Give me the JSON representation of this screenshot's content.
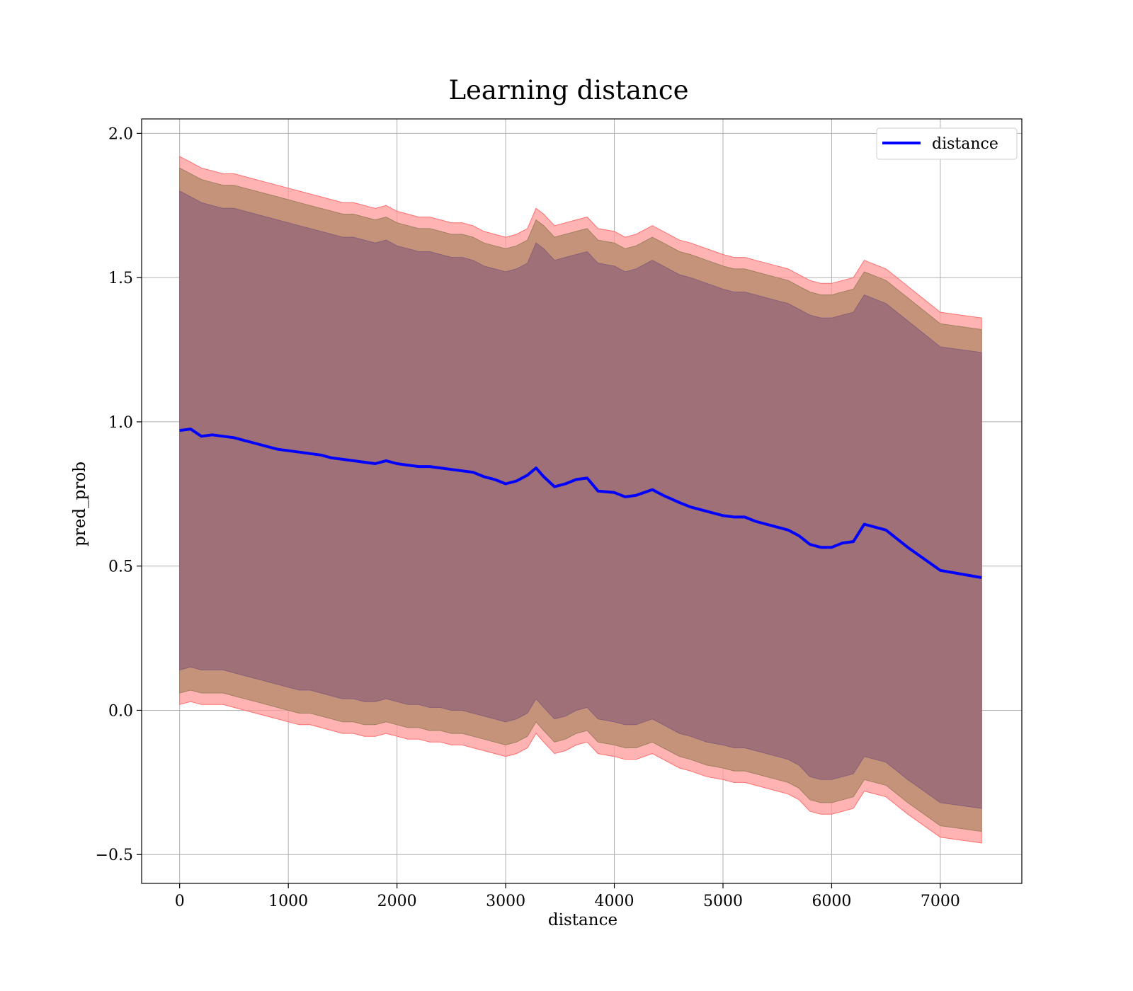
{
  "chart_data": {
    "type": "line",
    "title": "Learning distance",
    "xlabel": "distance",
    "ylabel": "pred_prob",
    "xlim": [
      -350,
      7750
    ],
    "ylim": [
      -0.6,
      2.05
    ],
    "x_ticks": [
      0,
      1000,
      2000,
      3000,
      4000,
      5000,
      6000,
      7000
    ],
    "y_ticks": [
      -0.5,
      0.0,
      0.5,
      1.0,
      1.5,
      2.0
    ],
    "x_tick_labels": [
      "0",
      "1000",
      "2000",
      "3000",
      "4000",
      "5000",
      "6000",
      "7000"
    ],
    "y_tick_labels": [
      "−0.5",
      "0.0",
      "0.5",
      "1.0",
      "1.5",
      "2.0"
    ],
    "grid": true,
    "legend": {
      "position": "top-right",
      "entries": [
        "distance"
      ]
    },
    "colors": {
      "line": "#0000ff",
      "band_outer": "#ff9999",
      "band_middle": "#c4937a",
      "band_inner": "#a07078",
      "grid": "#b0b0b0"
    },
    "series": [
      {
        "name": "distance",
        "x": [
          0,
          100,
          200,
          300,
          400,
          500,
          600,
          700,
          800,
          900,
          1000,
          1100,
          1200,
          1300,
          1400,
          1500,
          1600,
          1700,
          1800,
          1900,
          2000,
          2100,
          2200,
          2300,
          2400,
          2500,
          2600,
          2700,
          2800,
          2900,
          3000,
          3100,
          3200,
          3280,
          3350,
          3450,
          3550,
          3650,
          3750,
          3850,
          4000,
          4100,
          4200,
          4350,
          4450,
          4600,
          4700,
          4850,
          5000,
          5100,
          5200,
          5300,
          5500,
          5600,
          5700,
          5750,
          5800,
          5900,
          6000,
          6100,
          6200,
          6300,
          6500,
          6700,
          7000,
          7380
        ],
        "y": [
          0.97,
          0.975,
          0.95,
          0.955,
          0.95,
          0.945,
          0.935,
          0.925,
          0.915,
          0.905,
          0.9,
          0.895,
          0.89,
          0.885,
          0.875,
          0.87,
          0.865,
          0.86,
          0.855,
          0.865,
          0.855,
          0.85,
          0.845,
          0.845,
          0.84,
          0.835,
          0.83,
          0.825,
          0.81,
          0.8,
          0.785,
          0.795,
          0.815,
          0.84,
          0.81,
          0.775,
          0.785,
          0.8,
          0.805,
          0.76,
          0.755,
          0.74,
          0.745,
          0.765,
          0.745,
          0.72,
          0.705,
          0.69,
          0.675,
          0.67,
          0.67,
          0.655,
          0.635,
          0.625,
          0.605,
          0.59,
          0.575,
          0.565,
          0.565,
          0.58,
          0.585,
          0.645,
          0.625,
          0.565,
          0.485,
          0.46
        ],
        "band_outer_upper": [
          1.92,
          1.9,
          1.88,
          1.87,
          1.86,
          1.86,
          1.85,
          1.84,
          1.83,
          1.82,
          1.81,
          1.8,
          1.79,
          1.78,
          1.77,
          1.76,
          1.76,
          1.75,
          1.74,
          1.75,
          1.73,
          1.72,
          1.71,
          1.71,
          1.7,
          1.69,
          1.69,
          1.68,
          1.66,
          1.65,
          1.64,
          1.65,
          1.67,
          1.74,
          1.72,
          1.68,
          1.69,
          1.7,
          1.71,
          1.67,
          1.66,
          1.64,
          1.65,
          1.68,
          1.66,
          1.63,
          1.62,
          1.6,
          1.58,
          1.57,
          1.57,
          1.56,
          1.54,
          1.53,
          1.51,
          1.5,
          1.49,
          1.48,
          1.48,
          1.49,
          1.5,
          1.56,
          1.53,
          1.47,
          1.38,
          1.36
        ],
        "band_outer_lower": [
          0.02,
          0.03,
          0.02,
          0.02,
          0.02,
          0.01,
          0.0,
          -0.01,
          -0.02,
          -0.03,
          -0.04,
          -0.05,
          -0.05,
          -0.06,
          -0.07,
          -0.08,
          -0.08,
          -0.09,
          -0.09,
          -0.08,
          -0.09,
          -0.1,
          -0.1,
          -0.11,
          -0.11,
          -0.12,
          -0.12,
          -0.13,
          -0.14,
          -0.15,
          -0.16,
          -0.15,
          -0.13,
          -0.08,
          -0.11,
          -0.15,
          -0.14,
          -0.12,
          -0.11,
          -0.15,
          -0.16,
          -0.17,
          -0.17,
          -0.15,
          -0.17,
          -0.2,
          -0.21,
          -0.23,
          -0.24,
          -0.25,
          -0.25,
          -0.26,
          -0.28,
          -0.29,
          -0.31,
          -0.33,
          -0.35,
          -0.36,
          -0.36,
          -0.35,
          -0.34,
          -0.28,
          -0.3,
          -0.36,
          -0.44,
          -0.46
        ],
        "band_middle_upper": [
          1.88,
          1.86,
          1.84,
          1.83,
          1.82,
          1.82,
          1.81,
          1.8,
          1.79,
          1.78,
          1.77,
          1.76,
          1.75,
          1.74,
          1.73,
          1.72,
          1.72,
          1.71,
          1.7,
          1.71,
          1.69,
          1.68,
          1.67,
          1.67,
          1.66,
          1.65,
          1.65,
          1.64,
          1.62,
          1.61,
          1.6,
          1.61,
          1.63,
          1.7,
          1.68,
          1.64,
          1.65,
          1.66,
          1.67,
          1.63,
          1.62,
          1.6,
          1.61,
          1.64,
          1.62,
          1.59,
          1.58,
          1.56,
          1.54,
          1.53,
          1.53,
          1.52,
          1.5,
          1.49,
          1.47,
          1.46,
          1.45,
          1.44,
          1.44,
          1.45,
          1.46,
          1.52,
          1.49,
          1.43,
          1.34,
          1.32
        ],
        "band_middle_lower": [
          0.06,
          0.07,
          0.06,
          0.06,
          0.06,
          0.05,
          0.04,
          0.03,
          0.02,
          0.01,
          0.0,
          -0.01,
          -0.01,
          -0.02,
          -0.03,
          -0.04,
          -0.04,
          -0.05,
          -0.05,
          -0.04,
          -0.05,
          -0.06,
          -0.06,
          -0.07,
          -0.07,
          -0.08,
          -0.08,
          -0.09,
          -0.1,
          -0.11,
          -0.12,
          -0.11,
          -0.09,
          -0.04,
          -0.07,
          -0.11,
          -0.1,
          -0.08,
          -0.07,
          -0.11,
          -0.12,
          -0.13,
          -0.13,
          -0.11,
          -0.13,
          -0.16,
          -0.17,
          -0.19,
          -0.2,
          -0.21,
          -0.21,
          -0.22,
          -0.24,
          -0.25,
          -0.27,
          -0.29,
          -0.31,
          -0.32,
          -0.32,
          -0.31,
          -0.3,
          -0.24,
          -0.26,
          -0.32,
          -0.4,
          -0.42
        ],
        "band_inner_upper": [
          1.8,
          1.78,
          1.76,
          1.75,
          1.74,
          1.74,
          1.73,
          1.72,
          1.71,
          1.7,
          1.69,
          1.68,
          1.67,
          1.66,
          1.65,
          1.64,
          1.64,
          1.63,
          1.62,
          1.63,
          1.61,
          1.6,
          1.59,
          1.59,
          1.58,
          1.57,
          1.57,
          1.56,
          1.54,
          1.53,
          1.52,
          1.53,
          1.55,
          1.62,
          1.6,
          1.56,
          1.57,
          1.58,
          1.59,
          1.55,
          1.54,
          1.52,
          1.53,
          1.56,
          1.54,
          1.51,
          1.5,
          1.48,
          1.46,
          1.45,
          1.45,
          1.44,
          1.42,
          1.41,
          1.39,
          1.38,
          1.37,
          1.36,
          1.36,
          1.37,
          1.38,
          1.44,
          1.41,
          1.35,
          1.26,
          1.24
        ],
        "band_inner_lower": [
          0.14,
          0.15,
          0.14,
          0.14,
          0.14,
          0.13,
          0.12,
          0.11,
          0.1,
          0.09,
          0.08,
          0.07,
          0.07,
          0.06,
          0.05,
          0.04,
          0.04,
          0.03,
          0.03,
          0.04,
          0.03,
          0.02,
          0.02,
          0.01,
          0.01,
          0.0,
          0.0,
          -0.01,
          -0.02,
          -0.03,
          -0.04,
          -0.03,
          -0.01,
          0.04,
          0.01,
          -0.03,
          -0.02,
          0.0,
          0.01,
          -0.03,
          -0.04,
          -0.05,
          -0.05,
          -0.03,
          -0.05,
          -0.08,
          -0.09,
          -0.11,
          -0.12,
          -0.13,
          -0.13,
          -0.14,
          -0.16,
          -0.17,
          -0.19,
          -0.21,
          -0.23,
          -0.24,
          -0.24,
          -0.23,
          -0.22,
          -0.16,
          -0.18,
          -0.24,
          -0.32,
          -0.34
        ]
      }
    ]
  }
}
